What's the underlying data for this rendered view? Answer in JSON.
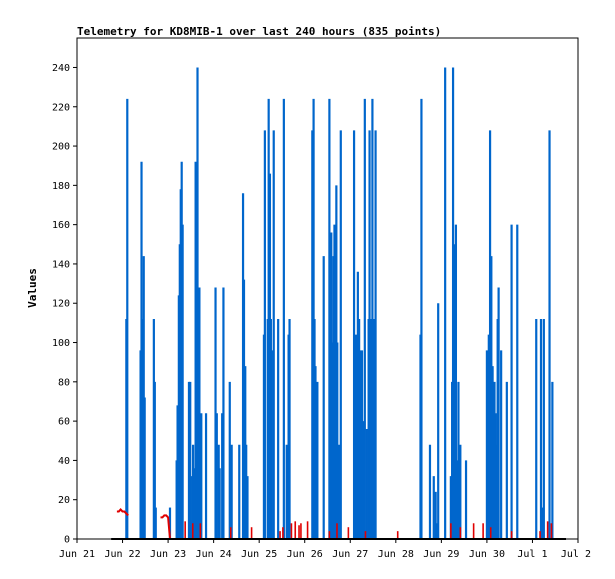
{
  "chart_data": {
    "type": "bar",
    "title": "Telemetry for KD8MIB-1 over last 240 hours (835 points)",
    "xlabel": "",
    "ylabel": "Values",
    "ylim": [
      0,
      255
    ],
    "yticks": [
      0,
      20,
      40,
      60,
      80,
      100,
      120,
      140,
      160,
      180,
      200,
      220,
      240
    ],
    "xlim": [
      "2025-06-21T00:00",
      "2025-07-02T00:00"
    ],
    "xticks": [
      "Jun 21",
      "Jun 22",
      "Jun 23",
      "Jun 24",
      "Jun 25",
      "Jun 26",
      "Jun 27",
      "Jun 28",
      "Jun 29",
      "Jun 30",
      "Jul 1",
      "Jul 2"
    ],
    "grid": false,
    "legend": "none",
    "colors": {
      "bars": "#0066cc",
      "line": "#e00000",
      "baseline": "#000000"
    },
    "series": [
      {
        "type": "bar",
        "color": "#0066cc",
        "x": [
          "2025-06-22T02:00",
          "2025-06-22T02:30",
          "2025-06-22T09:30",
          "2025-06-22T10:00",
          "2025-06-22T10:40",
          "2025-06-22T11:10",
          "2025-06-22T11:40",
          "2025-06-22T16:30",
          "2025-06-22T17:00",
          "2025-06-22T17:30",
          "2025-06-23T01:00",
          "2025-06-23T04:30",
          "2025-06-23T05:00",
          "2025-06-23T05:40",
          "2025-06-23T06:10",
          "2025-06-23T06:40",
          "2025-06-23T07:10",
          "2025-06-23T07:40",
          "2025-06-23T11:00",
          "2025-06-23T11:40",
          "2025-06-23T12:40",
          "2025-06-23T13:10",
          "2025-06-23T13:40",
          "2025-06-23T14:30",
          "2025-06-23T15:00",
          "2025-06-23T15:30",
          "2025-06-23T16:30",
          "2025-06-23T17:30",
          "2025-06-23T20:00",
          "2025-06-24T01:00",
          "2025-06-24T01:40",
          "2025-06-24T02:40",
          "2025-06-24T03:10",
          "2025-06-24T04:30",
          "2025-06-24T05:10",
          "2025-06-24T08:30",
          "2025-06-24T09:30",
          "2025-06-24T13:30",
          "2025-06-24T15:30",
          "2025-06-24T16:00",
          "2025-06-24T16:40",
          "2025-06-24T17:10",
          "2025-06-24T17:50",
          "2025-06-25T02:30",
          "2025-06-25T03:00",
          "2025-06-25T04:30",
          "2025-06-25T05:00",
          "2025-06-25T05:40",
          "2025-06-25T06:10",
          "2025-06-25T06:40",
          "2025-06-25T07:40",
          "2025-06-25T10:00",
          "2025-06-25T13:00",
          "2025-06-25T14:30",
          "2025-06-25T15:00",
          "2025-06-25T15:30",
          "2025-06-25T16:00",
          "2025-06-26T04:00",
          "2025-06-26T04:40",
          "2025-06-26T05:10",
          "2025-06-26T05:40",
          "2025-06-26T06:10",
          "2025-06-26T06:40",
          "2025-06-26T10:00",
          "2025-06-26T13:00",
          "2025-06-26T14:00",
          "2025-06-26T14:40",
          "2025-06-26T15:10",
          "2025-06-26T15:40",
          "2025-06-26T16:40",
          "2025-06-26T17:10",
          "2025-06-26T18:00",
          "2025-06-26T19:00",
          "2025-06-27T02:00",
          "2025-06-27T03:00",
          "2025-06-27T04:00",
          "2025-06-27T04:40",
          "2025-06-27T05:10",
          "2025-06-27T05:40",
          "2025-06-27T06:10",
          "2025-06-27T06:40",
          "2025-06-27T07:40",
          "2025-06-27T08:40",
          "2025-06-27T09:40",
          "2025-06-27T10:10",
          "2025-06-27T10:40",
          "2025-06-27T11:40",
          "2025-06-27T12:10",
          "2025-06-27T12:40",
          "2025-06-27T13:20",
          "2025-06-28T13:00",
          "2025-06-28T13:30",
          "2025-06-28T18:00",
          "2025-06-28T20:00",
          "2025-06-28T21:00",
          "2025-06-28T21:40",
          "2025-06-28T22:20",
          "2025-06-29T02:00",
          "2025-06-29T05:00",
          "2025-06-29T05:40",
          "2025-06-29T06:10",
          "2025-06-29T07:00",
          "2025-06-29T07:40",
          "2025-06-29T08:10",
          "2025-06-29T09:00",
          "2025-06-29T10:00",
          "2025-06-29T13:00",
          "2025-06-30T00:00",
          "2025-06-30T01:00",
          "2025-06-30T01:40",
          "2025-06-30T02:20",
          "2025-06-30T03:00",
          "2025-06-30T04:00",
          "2025-06-30T04:40",
          "2025-06-30T05:10",
          "2025-06-30T05:40",
          "2025-06-30T06:10",
          "2025-06-30T07:30",
          "2025-06-30T10:30",
          "2025-06-30T13:00",
          "2025-06-30T16:00",
          "2025-07-01T02:00",
          "2025-07-01T04:30",
          "2025-07-01T05:10",
          "2025-07-01T06:00",
          "2025-07-01T09:00",
          "2025-07-01T10:30"
        ],
        "values": [
          112,
          224,
          96,
          192,
          112,
          144,
          72,
          112,
          80,
          16,
          16,
          40,
          68,
          124,
          150,
          178,
          192,
          160,
          80,
          80,
          32,
          48,
          36,
          192,
          128,
          240,
          128,
          64,
          64,
          128,
          64,
          48,
          36,
          64,
          128,
          80,
          48,
          48,
          176,
          132,
          88,
          48,
          32,
          104,
          208,
          112,
          224,
          186,
          112,
          96,
          208,
          112,
          224,
          48,
          36,
          104,
          112,
          208,
          224,
          112,
          88,
          60,
          80,
          144,
          224,
          156,
          100,
          144,
          160,
          180,
          100,
          48,
          208,
          208,
          104,
          136,
          112,
          96,
          48,
          96,
          60,
          224,
          56,
          112,
          208,
          112,
          224,
          28,
          112,
          208,
          104,
          224,
          48,
          32,
          24,
          8,
          120,
          240,
          32,
          80,
          240,
          150,
          160,
          40,
          80,
          48,
          40,
          96,
          104,
          208,
          144,
          88,
          80,
          64,
          48,
          112,
          128,
          96,
          80,
          160,
          160,
          112,
          112,
          16,
          112,
          208,
          80
        ]
      },
      {
        "type": "line",
        "color": "#e00000",
        "x": [
          "2025-06-21T21:00",
          "2025-06-21T22:00",
          "2025-06-21T23:00",
          "2025-06-22T00:00",
          "2025-06-22T01:00",
          "2025-06-22T02:00",
          "2025-06-22T03:00"
        ],
        "values": [
          14,
          14,
          15,
          14,
          14,
          13,
          12
        ]
      },
      {
        "type": "line",
        "color": "#e00000",
        "x": [
          "2025-06-22T20:00",
          "2025-06-22T21:00",
          "2025-06-22T22:00",
          "2025-06-22T23:00",
          "2025-06-23T00:00",
          "2025-06-23T01:00"
        ],
        "values": [
          11,
          11,
          12,
          12,
          11,
          0
        ]
      },
      {
        "type": "bar",
        "color": "#e00000",
        "x": [
          "2025-06-23T09:00",
          "2025-06-23T13:00",
          "2025-06-23T17:00",
          "2025-06-24T09:00",
          "2025-06-24T20:00",
          "2025-06-25T11:00",
          "2025-06-25T12:30",
          "2025-06-25T17:00",
          "2025-06-25T19:00",
          "2025-06-25T21:00",
          "2025-06-25T22:00",
          "2025-06-26T01:30",
          "2025-06-26T13:00",
          "2025-06-26T17:00",
          "2025-06-26T23:00",
          "2025-06-27T08:00",
          "2025-06-28T01:00",
          "2025-06-29T05:00",
          "2025-06-29T10:00",
          "2025-06-29T17:00",
          "2025-06-29T22:00",
          "2025-06-30T02:00",
          "2025-06-30T13:00",
          "2025-07-01T04:00",
          "2025-07-01T08:00",
          "2025-07-01T10:00"
        ],
        "values": [
          9,
          8,
          8,
          6,
          6,
          4,
          6,
          8,
          9,
          7,
          8,
          9,
          4,
          8,
          6,
          4,
          4,
          8,
          6,
          8,
          8,
          6,
          4,
          4,
          9,
          8
        ]
      }
    ]
  }
}
